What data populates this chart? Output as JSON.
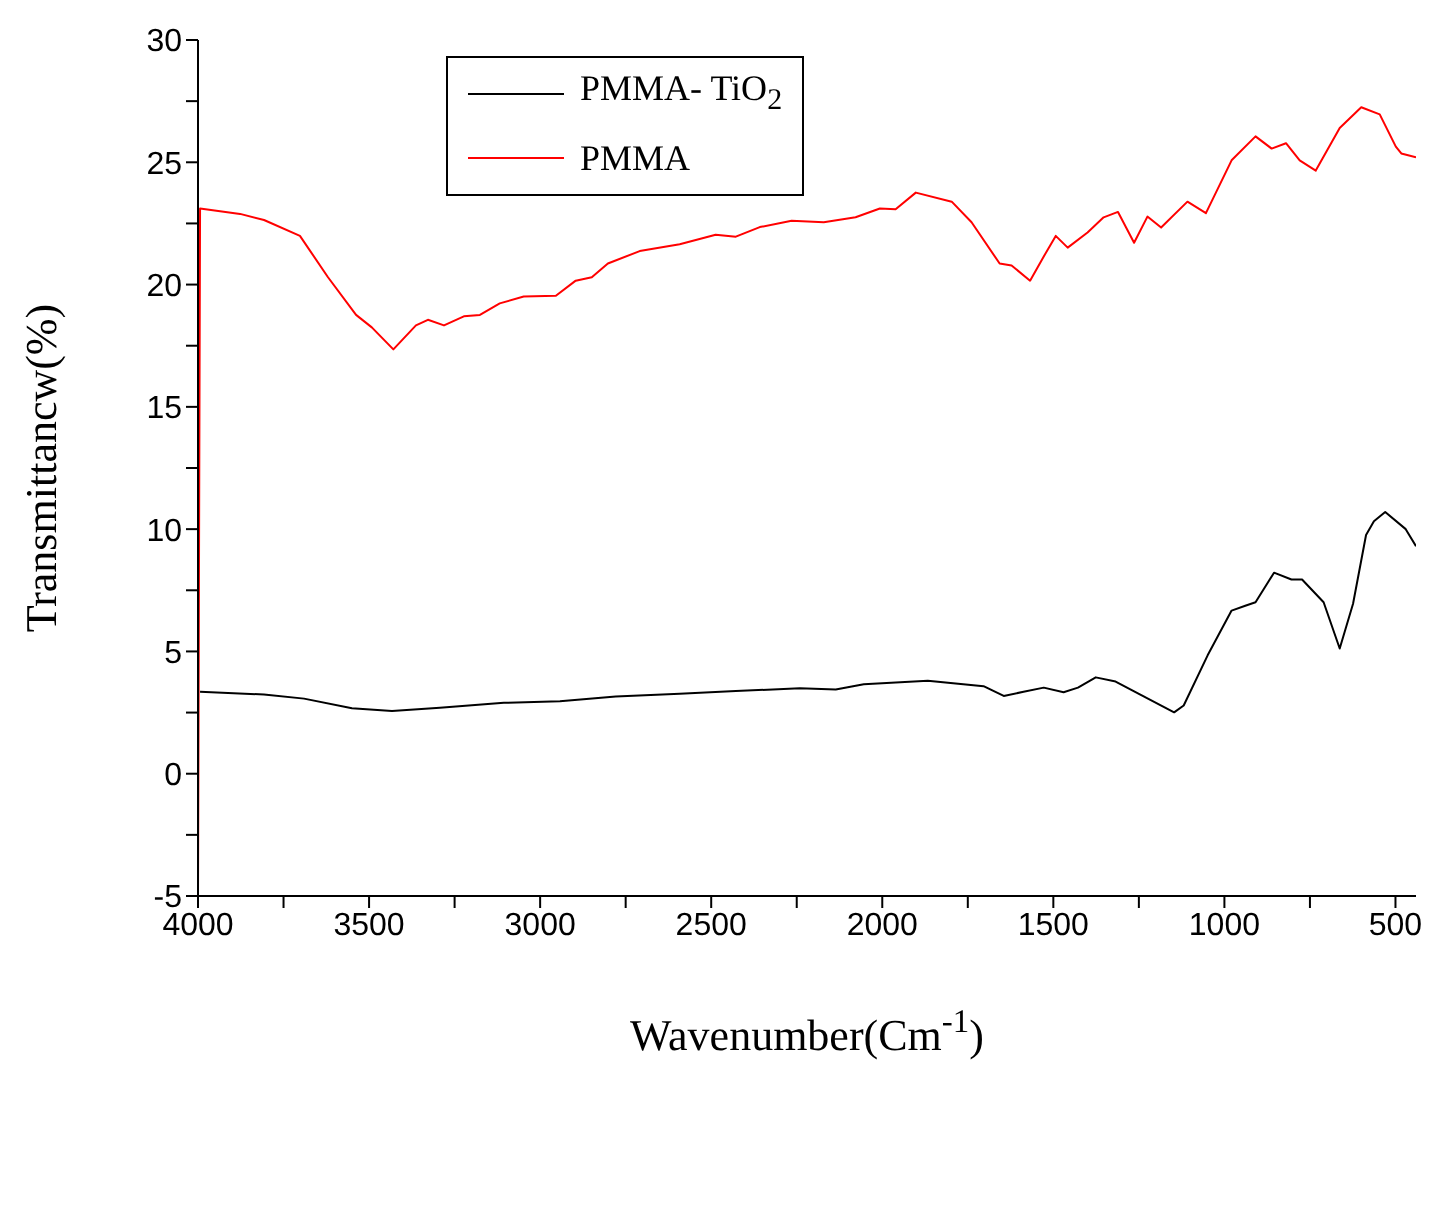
{
  "chart_data": {
    "type": "line",
    "xlabel": "Wavenumber(Cm$^{-1}$)",
    "ylabel": "Transmittancw(%)",
    "xlim": [
      4000,
      440
    ],
    "ylim": [
      -5,
      30
    ],
    "xticks": [
      4000,
      {
        "value": 3750,
        "label": null
      },
      3500,
      {
        "value": 3250,
        "label": null
      },
      3000,
      {
        "value": 2750,
        "label": null
      },
      2500,
      {
        "value": 2250,
        "label": null
      },
      2000,
      {
        "value": 1750,
        "label": null
      },
      1500,
      {
        "value": 1250,
        "label": null
      },
      1000,
      {
        "value": 750,
        "label": null
      },
      500
    ],
    "yticks": [
      -5,
      {
        "value": -2.5,
        "label": null
      },
      0,
      {
        "value": 2.5,
        "label": null
      },
      5,
      {
        "value": 7.5,
        "label": null
      },
      10,
      {
        "value": 12.5,
        "label": null
      },
      15,
      {
        "value": 17.5,
        "label": null
      },
      20,
      {
        "value": 22.5,
        "label": null
      },
      25,
      {
        "value": 27.5,
        "label": null
      },
      30
    ],
    "grid": false,
    "legend": "top left",
    "marker": "none",
    "line_style": "solid",
    "series": [
      {
        "name": "PMMA- TiO$_{2}$",
        "color": "#000000",
        "x": [
          3994,
          3807,
          3690,
          3550,
          3433,
          3293,
          3106,
          2942,
          2779,
          2592,
          2428,
          2241,
          2136,
          2054,
          1867,
          1704,
          1645,
          1587,
          1528,
          1470,
          1428,
          1376,
          1318,
          1236,
          1147,
          1119,
          1049,
          979,
          939,
          909,
          855,
          804,
          773,
          710,
          663,
          624,
          586,
          563,
          530,
          470,
          440
        ],
        "values": [
          3.35,
          3.24,
          3.07,
          2.68,
          2.56,
          2.7,
          2.9,
          2.96,
          3.16,
          3.27,
          3.38,
          3.49,
          3.44,
          3.66,
          3.8,
          3.58,
          3.18,
          3.35,
          3.52,
          3.33,
          3.52,
          3.94,
          3.77,
          3.16,
          2.51,
          2.79,
          4.84,
          6.67,
          6.87,
          7.01,
          8.22,
          7.94,
          7.94,
          7.01,
          5.12,
          6.95,
          9.76,
          10.32,
          10.7,
          10.0,
          9.3
        ]
      },
      {
        "name": "PMMA",
        "color": "#ff0000",
        "x": [
          4000,
          3994,
          3877,
          3807,
          3702,
          3620,
          3538,
          3492,
          3429,
          3363,
          3328,
          3281,
          3223,
          3176,
          3118,
          3048,
          2954,
          2896,
          2849,
          2802,
          2709,
          2592,
          2487,
          2428,
          2358,
          2265,
          2171,
          2078,
          2007,
          1961,
          1902,
          1797,
          1739,
          1657,
          1622,
          1568,
          1528,
          1493,
          1458,
          1400,
          1353,
          1311,
          1264,
          1225,
          1185,
          1108,
          1054,
          979,
          909,
          862,
          820,
          780,
          733,
          663,
          600,
          546,
          499,
          483,
          440
        ],
        "values": [
          -5,
          23.11,
          22.89,
          22.64,
          21.99,
          20.3,
          18.76,
          18.25,
          17.35,
          18.33,
          18.56,
          18.33,
          18.7,
          18.76,
          19.23,
          19.51,
          19.54,
          20.16,
          20.3,
          20.86,
          21.37,
          21.65,
          22.04,
          21.96,
          22.35,
          22.61,
          22.55,
          22.75,
          23.11,
          23.08,
          23.76,
          23.39,
          22.55,
          20.86,
          20.78,
          20.16,
          21.15,
          21.99,
          21.51,
          22.13,
          22.75,
          22.97,
          21.71,
          22.78,
          22.33,
          23.39,
          22.92,
          25.08,
          26.06,
          25.56,
          25.78,
          25.08,
          24.66,
          26.4,
          27.25,
          26.96,
          25.64,
          25.36,
          25.2
        ]
      }
    ]
  }
}
